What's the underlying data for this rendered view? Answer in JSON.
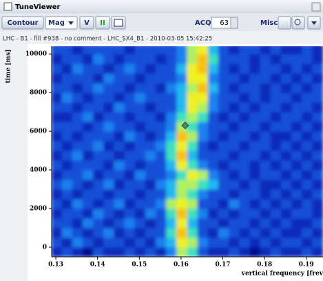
{
  "window": {
    "title": "TuneViewer"
  },
  "toolbar": {
    "contour": "Contour",
    "mode": "Mag",
    "plane": "V",
    "pause": "II",
    "acq_label": "ACQ#",
    "acq_value": "63",
    "misc": "Misc."
  },
  "info": "LHC - B1 - fill #938 - no comment - LHC_SX4_B1 - 2010-03-05 15:42:25",
  "chart_data": {
    "type": "heatmap",
    "x_label": "vertical frequency [frev",
    "y_label": "time [ms]",
    "xlim": [
      0.129,
      0.194
    ],
    "ylim": [
      -500,
      10400
    ],
    "xticks": [
      0.13,
      0.14,
      0.15,
      0.16,
      0.17,
      0.18,
      0.19
    ],
    "yticks": [
      0,
      2000,
      4000,
      6000,
      8000,
      10000
    ],
    "x_bins": [
      0.129,
      0.1315,
      0.134,
      0.1365,
      0.139,
      0.1415,
      0.144,
      0.1465,
      0.149,
      0.1515,
      0.154,
      0.1565,
      0.159,
      0.1615,
      0.164,
      0.1665,
      0.169,
      0.1715,
      0.174,
      0.1765,
      0.179,
      0.1815,
      0.184,
      0.1865,
      0.189,
      0.1915,
      0.194
    ],
    "y_bins": [
      -500,
      0,
      500,
      1000,
      1500,
      2000,
      2500,
      3000,
      3500,
      4000,
      4500,
      5000,
      5500,
      6000,
      6500,
      7000,
      7500,
      8000,
      8500,
      9000,
      9500,
      10000,
      10500
    ],
    "colorscale": [
      "#000060",
      "#001090",
      "#0a2ab8",
      "#1550d8",
      "#1c80f0",
      "#20b8f0",
      "#40e0c0",
      "#b0f060",
      "#f0f020",
      "#f8c010"
    ],
    "z": [
      [
        2,
        3,
        2,
        1,
        3,
        2,
        2,
        3,
        2,
        3,
        2,
        4,
        7,
        6,
        3,
        2,
        2,
        3,
        2,
        1,
        2,
        3,
        2,
        2,
        3,
        2
      ],
      [
        3,
        2,
        4,
        3,
        2,
        3,
        3,
        2,
        3,
        2,
        4,
        5,
        8,
        7,
        4,
        3,
        3,
        2,
        3,
        2,
        3,
        2,
        3,
        3,
        2,
        3
      ],
      [
        2,
        4,
        3,
        2,
        3,
        4,
        2,
        3,
        2,
        3,
        3,
        6,
        9,
        6,
        3,
        2,
        4,
        3,
        2,
        3,
        2,
        3,
        2,
        2,
        3,
        2
      ],
      [
        3,
        3,
        2,
        4,
        3,
        2,
        3,
        4,
        3,
        2,
        3,
        5,
        8,
        5,
        3,
        3,
        2,
        3,
        3,
        2,
        3,
        2,
        3,
        2,
        2,
        3
      ],
      [
        2,
        3,
        3,
        2,
        4,
        3,
        2,
        3,
        2,
        4,
        3,
        6,
        9,
        6,
        4,
        2,
        3,
        2,
        3,
        3,
        2,
        3,
        2,
        3,
        3,
        2
      ],
      [
        3,
        2,
        4,
        3,
        2,
        3,
        4,
        2,
        3,
        3,
        4,
        7,
        8,
        7,
        3,
        3,
        2,
        4,
        3,
        2,
        3,
        2,
        3,
        2,
        3,
        2
      ],
      [
        2,
        3,
        2,
        3,
        3,
        2,
        3,
        3,
        2,
        3,
        3,
        5,
        7,
        6,
        4,
        3,
        3,
        2,
        3,
        3,
        2,
        3,
        2,
        3,
        2,
        3
      ],
      [
        3,
        4,
        3,
        2,
        3,
        4,
        2,
        3,
        3,
        2,
        4,
        5,
        7,
        7,
        6,
        5,
        3,
        3,
        2,
        3,
        2,
        2,
        3,
        2,
        3,
        2
      ],
      [
        2,
        3,
        3,
        4,
        2,
        3,
        3,
        2,
        4,
        3,
        3,
        4,
        6,
        8,
        7,
        4,
        3,
        2,
        3,
        2,
        3,
        3,
        2,
        3,
        2,
        3
      ],
      [
        3,
        2,
        3,
        3,
        3,
        2,
        4,
        3,
        2,
        3,
        3,
        5,
        8,
        6,
        4,
        3,
        2,
        3,
        3,
        2,
        3,
        2,
        3,
        2,
        3,
        2
      ],
      [
        2,
        3,
        4,
        2,
        3,
        3,
        2,
        3,
        3,
        4,
        3,
        6,
        9,
        5,
        3,
        3,
        3,
        2,
        3,
        3,
        2,
        3,
        2,
        3,
        2,
        3
      ],
      [
        3,
        2,
        3,
        3,
        4,
        2,
        3,
        2,
        3,
        3,
        4,
        6,
        8,
        6,
        3,
        2,
        3,
        3,
        2,
        3,
        3,
        2,
        3,
        2,
        3,
        2
      ],
      [
        2,
        3,
        2,
        3,
        3,
        3,
        2,
        4,
        3,
        2,
        3,
        5,
        9,
        7,
        4,
        3,
        2,
        3,
        3,
        2,
        3,
        2,
        2,
        3,
        2,
        3
      ],
      [
        3,
        3,
        3,
        2,
        3,
        4,
        3,
        3,
        2,
        3,
        3,
        4,
        7,
        6,
        4,
        3,
        3,
        2,
        3,
        3,
        2,
        3,
        3,
        2,
        3,
        2
      ],
      [
        2,
        2,
        3,
        4,
        2,
        3,
        3,
        2,
        3,
        3,
        2,
        4,
        6,
        7,
        6,
        3,
        2,
        3,
        2,
        3,
        3,
        2,
        3,
        3,
        2,
        3
      ],
      [
        3,
        3,
        2,
        3,
        3,
        2,
        4,
        3,
        3,
        2,
        3,
        3,
        5,
        8,
        7,
        4,
        3,
        2,
        3,
        2,
        3,
        3,
        2,
        3,
        3,
        2
      ],
      [
        2,
        4,
        3,
        2,
        3,
        3,
        2,
        3,
        4,
        3,
        3,
        3,
        5,
        8,
        8,
        4,
        3,
        3,
        2,
        3,
        2,
        3,
        3,
        2,
        3,
        3
      ],
      [
        3,
        3,
        2,
        3,
        4,
        3,
        3,
        2,
        3,
        3,
        2,
        4,
        5,
        7,
        9,
        5,
        3,
        2,
        3,
        3,
        2,
        3,
        2,
        3,
        2,
        3
      ],
      [
        2,
        3,
        3,
        3,
        2,
        4,
        3,
        3,
        2,
        3,
        3,
        3,
        4,
        8,
        8,
        4,
        3,
        3,
        2,
        3,
        3,
        2,
        3,
        2,
        3,
        2
      ],
      [
        3,
        2,
        4,
        3,
        3,
        2,
        3,
        4,
        3,
        2,
        3,
        3,
        5,
        8,
        9,
        5,
        3,
        2,
        3,
        2,
        3,
        3,
        2,
        3,
        2,
        3
      ],
      [
        2,
        3,
        3,
        2,
        4,
        3,
        2,
        3,
        3,
        3,
        2,
        3,
        4,
        7,
        9,
        6,
        3,
        3,
        3,
        2,
        3,
        2,
        3,
        3,
        3,
        2
      ],
      [
        3,
        3,
        2,
        3,
        3,
        3,
        3,
        2,
        3,
        3,
        3,
        3,
        4,
        7,
        8,
        5,
        3,
        2,
        3,
        3,
        2,
        3,
        2,
        2,
        3,
        2
      ]
    ],
    "marker": {
      "x": 0.161,
      "y": 6300,
      "color": "#4a8a70"
    }
  }
}
